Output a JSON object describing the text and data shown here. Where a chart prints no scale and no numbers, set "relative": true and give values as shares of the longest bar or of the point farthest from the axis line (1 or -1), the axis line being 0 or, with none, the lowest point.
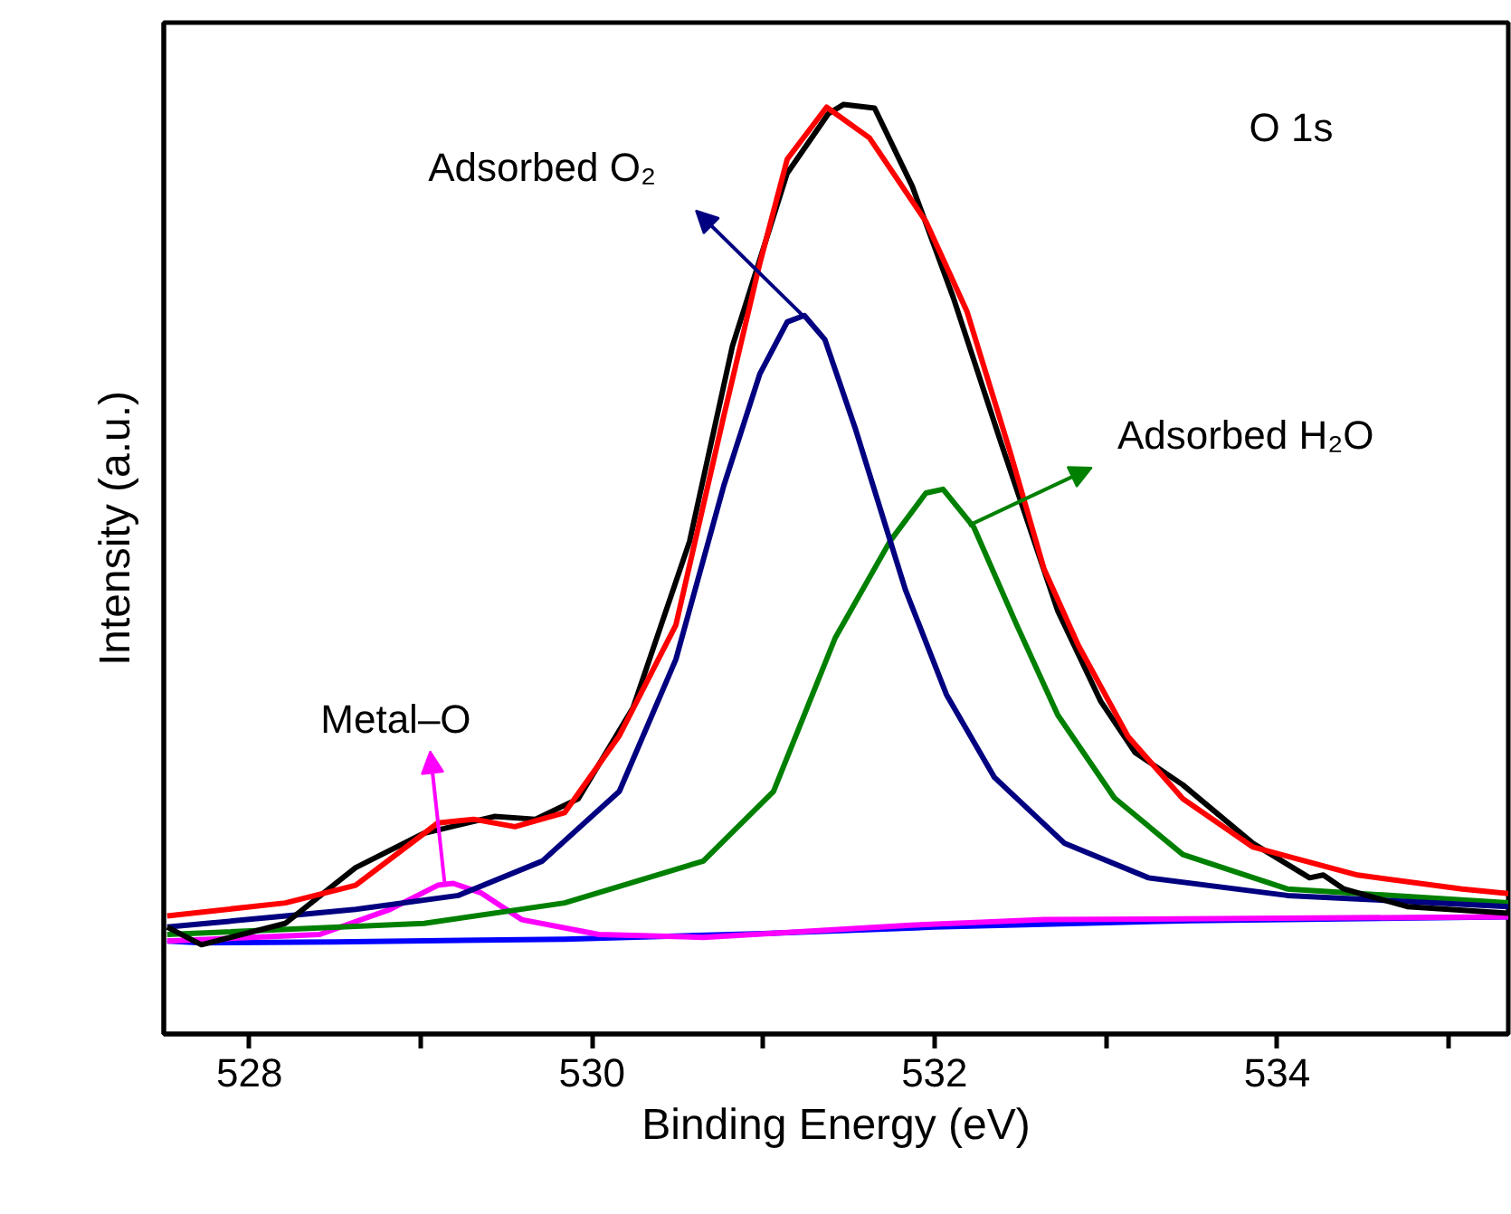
{
  "chart_data": {
    "type": "line",
    "relative": true,
    "xlabel": "Binding Energy (eV)",
    "ylabel": "Intensity (a.u.)",
    "xlim": [
      527.5,
      535.35
    ],
    "xticks": [
      528,
      {
        "value": 529,
        "label": null
      },
      530,
      {
        "value": 531,
        "label": null
      },
      532,
      {
        "value": 533,
        "label": null
      },
      534,
      {
        "value": 535,
        "label": null
      }
    ],
    "tick_labels": "x",
    "grid": false,
    "marker": "none",
    "line_style": "solid",
    "series": [
      {
        "color": "#0000ff",
        "x": [
          527.52,
          527.72,
          528.5,
          529.84,
          531.0,
          532.0,
          533.5,
          535.35
        ],
        "values": [
          0.1,
          0.098,
          0.099,
          0.102,
          0.108,
          0.115,
          0.122,
          0.126
        ]
      },
      {
        "color": "#ff00ff",
        "x": [
          527.52,
          528.41,
          528.82,
          529.1,
          529.19,
          529.35,
          529.59,
          530.04,
          530.65,
          531.86,
          532.64,
          535.35
        ],
        "values": [
          0.1,
          0.107,
          0.134,
          0.16,
          0.162,
          0.152,
          0.123,
          0.107,
          0.104,
          0.117,
          0.123,
          0.126
        ]
      },
      {
        "color": "#008000",
        "x": [
          527.52,
          529.02,
          529.84,
          530.65,
          531.06,
          531.42,
          531.74,
          531.95,
          532.05,
          532.23,
          532.48,
          532.72,
          533.05,
          533.45,
          534.06,
          535.35
        ],
        "values": [
          0.107,
          0.119,
          0.141,
          0.186,
          0.261,
          0.426,
          0.53,
          0.582,
          0.586,
          0.545,
          0.44,
          0.343,
          0.254,
          0.193,
          0.156,
          0.141
        ]
      },
      {
        "color": "#000080",
        "x": [
          527.52,
          528.62,
          529.22,
          529.71,
          530.16,
          530.49,
          530.77,
          530.98,
          531.14,
          531.24,
          531.36,
          531.54,
          531.83,
          532.07,
          532.35,
          532.76,
          533.25,
          534.06,
          535.35
        ],
        "values": [
          0.115,
          0.134,
          0.149,
          0.186,
          0.261,
          0.403,
          0.59,
          0.71,
          0.766,
          0.773,
          0.747,
          0.65,
          0.478,
          0.365,
          0.276,
          0.205,
          0.168,
          0.149,
          0.137
        ]
      },
      {
        "color": "#000000",
        "x": [
          527.52,
          527.72,
          528.21,
          528.62,
          529.02,
          529.43,
          529.67,
          529.92,
          530.24,
          530.57,
          530.82,
          531.14,
          531.38,
          531.47,
          531.65,
          531.87,
          532.11,
          532.39,
          532.72,
          532.97,
          533.17,
          533.45,
          533.86,
          534.19,
          534.27,
          534.39,
          534.76,
          535.35
        ],
        "values": [
          0.115,
          0.096,
          0.119,
          0.179,
          0.216,
          0.234,
          0.231,
          0.253,
          0.351,
          0.53,
          0.74,
          0.926,
          0.99,
          1.0,
          0.996,
          0.912,
          0.792,
          0.635,
          0.455,
          0.358,
          0.303,
          0.268,
          0.205,
          0.168,
          0.171,
          0.156,
          0.137,
          0.13
        ]
      },
      {
        "color": "#ff0000",
        "x": [
          527.52,
          528.21,
          528.62,
          529.1,
          529.31,
          529.55,
          529.84,
          530.16,
          530.49,
          530.77,
          530.98,
          531.14,
          531.37,
          531.62,
          531.95,
          532.19,
          532.44,
          532.64,
          532.84,
          533.13,
          533.45,
          533.86,
          534.47,
          535.08,
          535.35
        ],
        "values": [
          0.127,
          0.141,
          0.16,
          0.227,
          0.231,
          0.223,
          0.238,
          0.321,
          0.44,
          0.665,
          0.829,
          0.941,
          0.997,
          0.964,
          0.874,
          0.777,
          0.627,
          0.5,
          0.418,
          0.32,
          0.253,
          0.201,
          0.171,
          0.156,
          0.151
        ]
      }
    ],
    "annotations": [
      "O 1s",
      {
        "text": "Adsorbed O₂",
        "x": 531.23,
        "y": 0.773
      },
      {
        "text": "Adsorbed H₂O",
        "x": 532.2,
        "y": 0.547
      },
      {
        "text": "Metal–O",
        "x": 529.14,
        "y": 0.162
      }
    ]
  }
}
